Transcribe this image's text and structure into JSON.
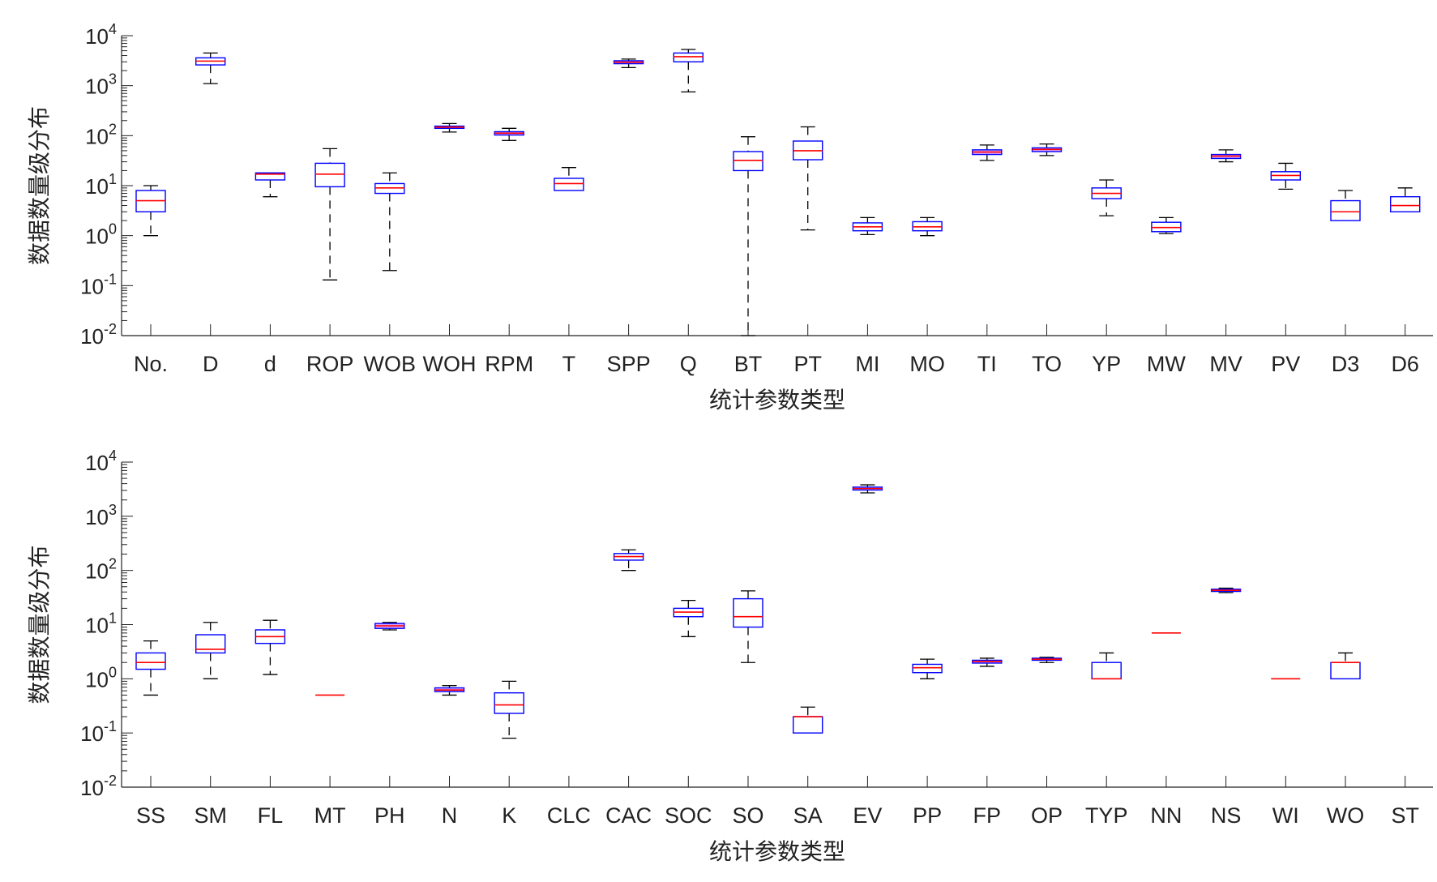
{
  "chart_data": [
    {
      "type": "box",
      "title": "",
      "xlabel": "统计参数类型",
      "ylabel": "数据数量级分布",
      "yscale": "log",
      "ylim": [
        0.01,
        10000
      ],
      "yticks": [
        {
          "base": "10",
          "exp": "4"
        },
        {
          "base": "10",
          "exp": "3"
        },
        {
          "base": "10",
          "exp": "2"
        },
        {
          "base": "10",
          "exp": "1"
        },
        {
          "base": "10",
          "exp": "0"
        },
        {
          "base": "10",
          "exp": "-1"
        },
        {
          "base": "10",
          "exp": "-2"
        }
      ],
      "ytick_values": [
        10000,
        1000,
        100,
        10,
        1,
        0.1,
        0.01
      ],
      "colors": {
        "box": "#0000ff",
        "median": "#ff0000",
        "whisker": "#000000",
        "fill": "#cc66ff"
      },
      "categories": [
        "No.",
        "D",
        "d",
        "ROP",
        "WOB",
        "WOH",
        "RPM",
        "T",
        "SPP",
        "Q",
        "BT",
        "PT",
        "MI",
        "MO",
        "TI",
        "TO",
        "YP",
        "MW",
        "MV",
        "PV",
        "D3",
        "D6"
      ],
      "boxes": [
        {
          "min": 1,
          "q1": 3,
          "median": 5,
          "q3": 8,
          "max": 10
        },
        {
          "min": 1100,
          "q1": 2600,
          "median": 3100,
          "q3": 3600,
          "max": 4500
        },
        {
          "min": 6,
          "q1": 13,
          "median": 17,
          "q3": 18,
          "max": 18
        },
        {
          "min": 0.13,
          "q1": 9.5,
          "median": 17,
          "q3": 28,
          "max": 55
        },
        {
          "min": 0.2,
          "q1": 7,
          "median": 9,
          "q3": 11,
          "max": 18
        },
        {
          "min": 118,
          "q1": 140,
          "median": 148,
          "q3": 155,
          "max": 175
        },
        {
          "min": 80,
          "q1": 103,
          "median": 112,
          "q3": 120,
          "max": 140
        },
        {
          "min": 8,
          "q1": 8,
          "median": 11,
          "q3": 14,
          "max": 23
        },
        {
          "min": 2300,
          "q1": 2750,
          "median": 2950,
          "q3": 3150,
          "max": 3400
        },
        {
          "min": 750,
          "q1": 3000,
          "median": 3800,
          "q3": 4500,
          "max": 5300
        },
        {
          "min": 0.01,
          "q1": 20,
          "median": 32,
          "q3": 48,
          "max": 95
        },
        {
          "min": 1.3,
          "q1": 33,
          "median": 50,
          "q3": 78,
          "max": 150
        },
        {
          "min": 1.05,
          "q1": 1.25,
          "median": 1.5,
          "q3": 1.8,
          "max": 2.3
        },
        {
          "min": 1.0,
          "q1": 1.25,
          "median": 1.5,
          "q3": 1.9,
          "max": 2.3
        },
        {
          "min": 32,
          "q1": 42,
          "median": 47,
          "q3": 52,
          "max": 65
        },
        {
          "min": 40,
          "q1": 48,
          "median": 53,
          "q3": 57,
          "max": 68
        },
        {
          "min": 2.5,
          "q1": 5.5,
          "median": 7,
          "q3": 9,
          "max": 13
        },
        {
          "min": 1.1,
          "q1": 1.2,
          "median": 1.45,
          "q3": 1.85,
          "max": 2.3
        },
        {
          "min": 30,
          "q1": 35,
          "median": 39,
          "q3": 42,
          "max": 52
        },
        {
          "min": 8.5,
          "q1": 13,
          "median": 16,
          "q3": 19,
          "max": 28
        },
        {
          "min": 2,
          "q1": 2,
          "median": 3,
          "q3": 5,
          "max": 8
        },
        {
          "min": 3,
          "q1": 3,
          "median": 4,
          "q3": 6,
          "max": 9
        }
      ]
    },
    {
      "type": "box",
      "title": "",
      "xlabel": "统计参数类型",
      "ylabel": "数据数量级分布",
      "yscale": "log",
      "ylim": [
        0.01,
        10000
      ],
      "yticks": [
        {
          "base": "10",
          "exp": "4"
        },
        {
          "base": "10",
          "exp": "3"
        },
        {
          "base": "10",
          "exp": "2"
        },
        {
          "base": "10",
          "exp": "1"
        },
        {
          "base": "10",
          "exp": "0"
        },
        {
          "base": "10",
          "exp": "-1"
        },
        {
          "base": "10",
          "exp": "-2"
        }
      ],
      "ytick_values": [
        10000,
        1000,
        100,
        10,
        1,
        0.1,
        0.01
      ],
      "colors": {
        "box": "#0000ff",
        "median": "#ff0000",
        "whisker": "#000000",
        "fill": "#cc66ff"
      },
      "categories": [
        "SS",
        "SM",
        "FL",
        "MT",
        "PH",
        "N",
        "K",
        "CLC",
        "CAC",
        "SOC",
        "SO",
        "SA",
        "EV",
        "PP",
        "FP",
        "OP",
        "TYP",
        "NN",
        "NS",
        "WI",
        "WO",
        "ST"
      ],
      "boxes": [
        {
          "min": 0.5,
          "q1": 1.5,
          "median": 2,
          "q3": 3,
          "max": 5
        },
        {
          "min": 1,
          "q1": 3,
          "median": 3.5,
          "q3": 6.5,
          "max": 11
        },
        {
          "min": 1.2,
          "q1": 4.5,
          "median": 6,
          "q3": 8,
          "max": 12
        },
        {
          "min": 0.5,
          "q1": 0.5,
          "median": 0.5,
          "q3": 0.5,
          "max": 0.5
        },
        {
          "min": 8,
          "q1": 8.5,
          "median": 9.5,
          "q3": 10.5,
          "max": 11
        },
        {
          "min": 0.5,
          "q1": 0.58,
          "median": 0.62,
          "q3": 0.68,
          "max": 0.75
        },
        {
          "min": 0.08,
          "q1": 0.23,
          "median": 0.33,
          "q3": 0.55,
          "max": 0.9
        },
        null,
        {
          "min": 100,
          "q1": 155,
          "median": 180,
          "q3": 205,
          "max": 240
        },
        {
          "min": 6,
          "q1": 14,
          "median": 17,
          "q3": 20,
          "max": 28
        },
        {
          "min": 2,
          "q1": 9,
          "median": 14,
          "q3": 30,
          "max": 42
        },
        {
          "min": 0.1,
          "q1": 0.1,
          "median": 0.2,
          "q3": 0.2,
          "max": 0.3
        },
        {
          "min": 2700,
          "q1": 3050,
          "median": 3250,
          "q3": 3450,
          "max": 3800
        },
        {
          "min": 1.0,
          "q1": 1.3,
          "median": 1.6,
          "q3": 1.85,
          "max": 2.3
        },
        {
          "min": 1.7,
          "q1": 1.95,
          "median": 2.1,
          "q3": 2.2,
          "max": 2.4
        },
        {
          "min": 2.0,
          "q1": 2.2,
          "median": 2.3,
          "q3": 2.4,
          "max": 2.5
        },
        {
          "min": 1,
          "q1": 1,
          "median": 1,
          "q3": 2,
          "max": 3
        },
        {
          "min": 7,
          "q1": 7,
          "median": 7,
          "q3": 7,
          "max": 7
        },
        {
          "min": 39,
          "q1": 41,
          "median": 43,
          "q3": 45,
          "max": 47
        },
        {
          "min": 1,
          "q1": 1,
          "median": 1,
          "q3": 1,
          "max": 1
        },
        {
          "min": 1,
          "q1": 1,
          "median": 2,
          "q3": 2,
          "max": 3
        },
        null
      ]
    }
  ]
}
